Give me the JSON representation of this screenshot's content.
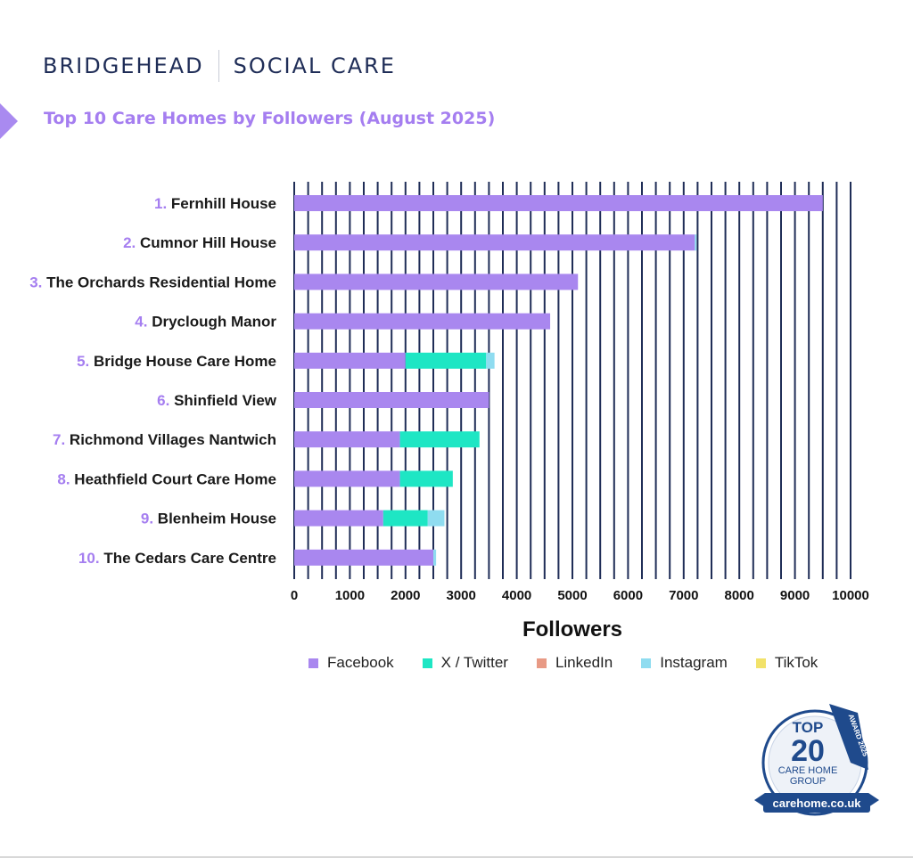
{
  "brand": {
    "name_left": "BRIDGEHEAD",
    "name_right": "SOCIAL CARE"
  },
  "colors": {
    "Facebook": "#a987ef",
    "X / Twitter": "#1ee6c4",
    "LinkedIn": "#e89a85",
    "Instagram": "#8fdcf0",
    "TikTok": "#f2e26a",
    "gridline": "#1f2d57",
    "title": "#a57ef0"
  },
  "chart_data": {
    "type": "bar",
    "orientation": "horizontal",
    "stacked": true,
    "title": "Top 10 Care Homes by Followers (August 2025)",
    "xlabel": "Followers",
    "ylabel": "",
    "xlim": [
      0,
      10000
    ],
    "x_ticks": [
      "0",
      "1000",
      "2000",
      "3000",
      "4000",
      "5000",
      "6000",
      "7000",
      "8000",
      "9000",
      "10000"
    ],
    "grid": true,
    "legend_position": "bottom",
    "categories": [
      {
        "rank": "1.",
        "name": "Fernhill House"
      },
      {
        "rank": "2.",
        "name": "Cumnor Hill House"
      },
      {
        "rank": "3.",
        "name": "The Orchards Residential Home"
      },
      {
        "rank": "4.",
        "name": "Dryclough Manor"
      },
      {
        "rank": "5.",
        "name": "Bridge House Care Home"
      },
      {
        "rank": "6.",
        "name": "Shinfield View"
      },
      {
        "rank": "7.",
        "name": "Richmond Villages Nantwich"
      },
      {
        "rank": "8.",
        "name": "Heathfield Court Care Home"
      },
      {
        "rank": "9.",
        "name": "Blenheim House"
      },
      {
        "rank": "10.",
        "name": "The Cedars Care Centre"
      }
    ],
    "series": [
      {
        "name": "Facebook",
        "values": [
          9500,
          7200,
          5100,
          4600,
          2000,
          3500,
          1900,
          1900,
          1600,
          2500
        ]
      },
      {
        "name": "X / Twitter",
        "values": [
          0,
          0,
          0,
          0,
          1450,
          0,
          1430,
          950,
          800,
          0
        ]
      },
      {
        "name": "LinkedIn",
        "values": [
          0,
          0,
          0,
          0,
          0,
          0,
          0,
          0,
          0,
          0
        ]
      },
      {
        "name": "Instagram",
        "values": [
          0,
          30,
          0,
          0,
          150,
          0,
          0,
          0,
          300,
          50
        ]
      },
      {
        "name": "TikTok",
        "values": [
          0,
          0,
          0,
          0,
          0,
          0,
          0,
          0,
          0,
          0
        ]
      }
    ]
  },
  "badge": {
    "top": "TOP",
    "number": "20",
    "line1": "CARE HOME",
    "line2": "GROUP",
    "ribbon": "AWARD 2025",
    "site": "carehome.co.uk"
  }
}
